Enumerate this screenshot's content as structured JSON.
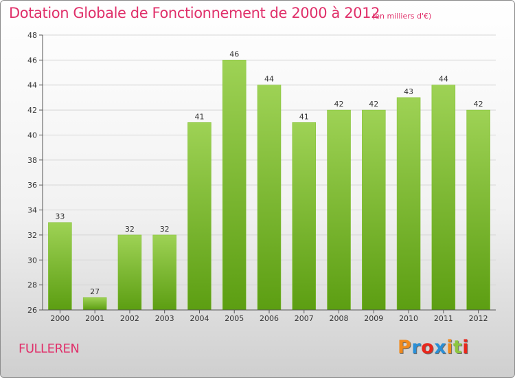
{
  "header": {
    "title": "Dotation Globale de Fonctionnement de 2000 à 2012",
    "unit": "(en milliers d'€)"
  },
  "footer": {
    "commune": "FULLEREN",
    "logo_text": "Proxiti",
    "logo_colors": [
      "#f08a1e",
      "#2a8fd6",
      "#e8271c",
      "#2a8fd6",
      "#f08a1e",
      "#8cc63f",
      "#e8271c"
    ]
  },
  "colors": {
    "title": "#e0306a",
    "bar_top": "#9ed255",
    "bar_bottom": "#5c9e12",
    "grid": "#d6d6d6"
  },
  "chart_data": {
    "type": "bar",
    "title": "Dotation Globale de Fonctionnement de 2000 à 2012",
    "subtitle": "(en milliers d'€)",
    "categories": [
      "2000",
      "2001",
      "2002",
      "2003",
      "2004",
      "2005",
      "2006",
      "2007",
      "2008",
      "2009",
      "2010",
      "2011",
      "2012"
    ],
    "values": [
      33,
      27,
      32,
      32,
      41,
      46,
      44,
      41,
      42,
      42,
      43,
      44,
      42
    ],
    "ylim": [
      26,
      48
    ],
    "yticks": [
      26,
      28,
      30,
      32,
      34,
      36,
      38,
      40,
      42,
      44,
      46,
      48
    ],
    "grid": true,
    "legend": "none"
  }
}
